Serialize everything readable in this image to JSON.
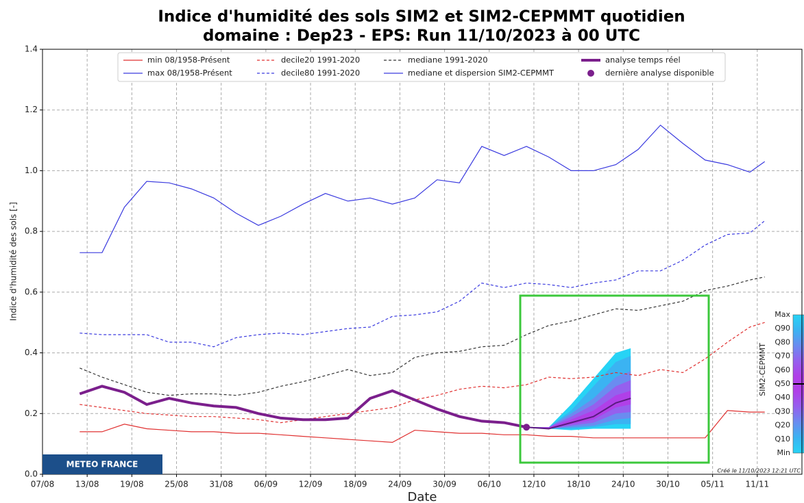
{
  "chart_data": {
    "type": "line",
    "title": "Indice d'humidité des sols SIM2 et SIM2-CEPMMT quotidien",
    "subtitle": "domaine : Dep23  -  EPS: Run 11/10/2023 à 00 UTC",
    "ylabel": "Indice d'humidité des sols  [-]",
    "xlabel": "Date",
    "logo": "METEO FRANCE",
    "footer": "Créé le 11/10/2023 12:21 UTC",
    "xlim": [
      "07/08",
      "17/11"
    ],
    "xticks": [
      "07/08",
      "13/08",
      "19/08",
      "25/08",
      "31/08",
      "06/09",
      "12/09",
      "18/09",
      "24/09",
      "30/09",
      "06/10",
      "12/10",
      "18/10",
      "24/10",
      "30/10",
      "05/11",
      "11/11"
    ],
    "ylim": [
      0,
      1.4
    ],
    "yticks": [
      {
        "value": 0,
        "label": "0.0"
      },
      0.2,
      0.4,
      0.6,
      0.8,
      {
        "value": 1,
        "label": "1.0"
      },
      1.2,
      1.4
    ],
    "grid": true,
    "legend": "upper center",
    "x": [
      "12/08",
      "15/08",
      "18/08",
      "21/08",
      "24/08",
      "27/08",
      "30/08",
      "02/09",
      "05/09",
      "08/09",
      "11/09",
      "14/09",
      "17/09",
      "20/09",
      "23/09",
      "26/09",
      "29/09",
      "02/10",
      "05/10",
      "08/10",
      "11/10",
      "14/10",
      "17/10",
      "20/10",
      "23/10",
      "26/10",
      "29/10",
      "01/11",
      "04/11",
      "07/11",
      "10/11",
      "12/11"
    ],
    "series": [
      {
        "name": "min 08/1958-Présent",
        "color": "#e03030",
        "dash": false,
        "width": 1.2,
        "values": [
          0.14,
          0.14,
          0.165,
          0.15,
          0.145,
          0.14,
          0.14,
          0.135,
          0.135,
          0.13,
          0.125,
          0.12,
          0.115,
          0.11,
          0.105,
          0.145,
          0.14,
          0.135,
          0.135,
          0.13,
          0.13,
          0.125,
          0.125,
          0.12,
          0.12,
          0.12,
          0.12,
          0.12,
          0.12,
          0.21,
          0.205,
          0.205
        ]
      },
      {
        "name": "max 08/1958-Présent",
        "color": "#3a3adf",
        "dash": false,
        "width": 1.2,
        "values": [
          0.73,
          0.73,
          0.88,
          0.965,
          0.96,
          0.94,
          0.91,
          0.86,
          0.82,
          0.85,
          0.89,
          0.925,
          0.9,
          0.91,
          0.89,
          0.91,
          0.97,
          0.96,
          1.08,
          1.05,
          1.08,
          1.045,
          1,
          1,
          1.02,
          1.07,
          1.15,
          1.09,
          1.035,
          1.02,
          0.995,
          1.03
        ]
      },
      {
        "name": "decile20 1991-2020",
        "color": "#e03030",
        "dash": true,
        "width": 1.2,
        "values": [
          0.23,
          0.22,
          0.21,
          0.2,
          0.195,
          0.19,
          0.19,
          0.185,
          0.18,
          0.17,
          0.18,
          0.19,
          0.2,
          0.21,
          0.22,
          0.245,
          0.26,
          0.28,
          0.29,
          0.285,
          0.295,
          0.32,
          0.315,
          0.32,
          0.335,
          0.325,
          0.345,
          0.335,
          0.38,
          0.435,
          0.485,
          0.5
        ]
      },
      {
        "name": "decile80 1991-2020",
        "color": "#3a3adf",
        "dash": true,
        "width": 1.2,
        "values": [
          0.465,
          0.46,
          0.46,
          0.46,
          0.435,
          0.435,
          0.42,
          0.45,
          0.46,
          0.465,
          0.46,
          0.47,
          0.48,
          0.485,
          0.52,
          0.525,
          0.535,
          0.57,
          0.63,
          0.615,
          0.63,
          0.625,
          0.615,
          0.63,
          0.64,
          0.67,
          0.67,
          0.705,
          0.755,
          0.79,
          0.795,
          0.835
        ]
      },
      {
        "name": "mediane 1991-2020",
        "color": "#333333",
        "dash": true,
        "width": 1.2,
        "values": [
          0.35,
          0.32,
          0.295,
          0.27,
          0.26,
          0.265,
          0.265,
          0.26,
          0.27,
          0.29,
          0.305,
          0.325,
          0.345,
          0.325,
          0.335,
          0.385,
          0.4,
          0.405,
          0.42,
          0.425,
          0.46,
          0.49,
          0.505,
          0.525,
          0.545,
          0.54,
          0.555,
          0.57,
          0.605,
          0.62,
          0.64,
          0.65
        ]
      },
      {
        "name": "analyse temps réel",
        "color": "#7b1f8c",
        "dash": false,
        "width": 4,
        "x": [
          "12/08",
          "15/08",
          "18/08",
          "21/08",
          "24/08",
          "27/08",
          "30/08",
          "02/09",
          "05/09",
          "08/09",
          "11/09",
          "14/09",
          "17/09",
          "20/09",
          "23/09",
          "26/09",
          "29/09",
          "02/10",
          "05/10",
          "08/10",
          "11/10"
        ],
        "values": [
          0.265,
          0.29,
          0.27,
          0.23,
          0.25,
          0.235,
          0.225,
          0.22,
          0.2,
          0.185,
          0.18,
          0.18,
          0.185,
          0.25,
          0.275,
          0.245,
          0.215,
          0.19,
          0.175,
          0.17,
          0.155
        ]
      },
      {
        "name": "mediane et dispersion SIM2-CEPMMT",
        "color": "#3a3adf",
        "median_color": "#5a1a80",
        "x": [
          "11/10",
          "14/10",
          "17/10",
          "20/10",
          "23/10",
          "25/10"
        ],
        "band_colors": [
          "#27d3f5",
          "#3bb3f2",
          "#6a8cf0",
          "#9560ee",
          "#b040e8"
        ],
        "quantiles": [
          {
            "name": "Min",
            "values": [
              0.155,
              0.15,
              0.145,
              0.15,
              0.15,
              0.15
            ]
          },
          {
            "name": "Q10",
            "values": [
              0.155,
              0.15,
              0.15,
              0.155,
              0.165,
              0.165
            ]
          },
          {
            "name": "Q20",
            "values": [
              0.155,
              0.15,
              0.155,
              0.16,
              0.18,
              0.185
            ]
          },
          {
            "name": "Q30",
            "values": [
              0.155,
              0.15,
              0.16,
              0.17,
              0.2,
              0.205
            ]
          },
          {
            "name": "Q40",
            "values": [
              0.155,
              0.15,
              0.165,
              0.18,
              0.22,
              0.23
            ]
          },
          {
            "name": "Q50",
            "values": [
              0.155,
              0.15,
              0.17,
              0.19,
              0.235,
              0.25
            ]
          },
          {
            "name": "Q60",
            "values": [
              0.155,
              0.155,
              0.18,
              0.21,
              0.26,
              0.275
            ]
          },
          {
            "name": "Q70",
            "values": [
              0.155,
              0.155,
              0.19,
              0.23,
              0.29,
              0.31
            ]
          },
          {
            "name": "Q80",
            "values": [
              0.155,
              0.155,
              0.2,
              0.25,
              0.32,
              0.34
            ]
          },
          {
            "name": "Q90",
            "values": [
              0.155,
              0.155,
              0.21,
              0.29,
              0.37,
              0.39
            ]
          },
          {
            "name": "Max",
            "values": [
              0.155,
              0.155,
              0.23,
              0.315,
              0.4,
              0.415
            ]
          }
        ]
      },
      {
        "name": "dernière analyse disponible",
        "color": "#7b1f8c",
        "marker": true,
        "x": [
          "11/10"
        ],
        "values": [
          0.155
        ]
      }
    ],
    "colorbar_label": "SIM2-CEPMMT"
  }
}
